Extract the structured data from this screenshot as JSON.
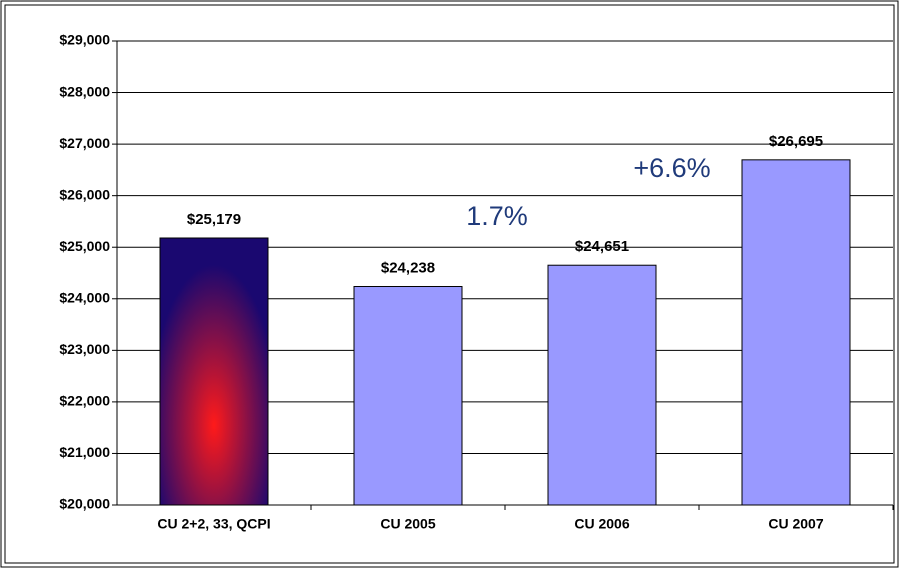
{
  "chart_data": {
    "type": "bar",
    "categories": [
      "CU 2+2, 33, QCPI",
      "CU 2005",
      "CU 2006",
      "CU 2007"
    ],
    "values": [
      25179,
      24238,
      24651,
      26695
    ],
    "value_labels": [
      "$25,179",
      "$24,238",
      "$24,651",
      "$26,695"
    ],
    "colors": [
      "#ff1a1a",
      "#9999ff",
      "#9999ff",
      "#9999ff"
    ],
    "ylim": [
      20000,
      29000
    ],
    "yticks": [
      {
        "value": 20000,
        "label": "$20,000"
      },
      {
        "value": 21000,
        "label": "$21,000"
      },
      {
        "value": 22000,
        "label": "$22,000"
      },
      {
        "value": 23000,
        "label": "$23,000"
      },
      {
        "value": 24000,
        "label": "$24,000"
      },
      {
        "value": 25000,
        "label": "$25,000"
      },
      {
        "value": 26000,
        "label": "$26,000"
      },
      {
        "value": 27000,
        "label": "$27,000"
      },
      {
        "value": 28000,
        "label": "$28,000"
      },
      {
        "value": 29000,
        "label": "$29,000"
      }
    ],
    "grid": true,
    "annotations": [
      "1.7%",
      "+6.6%"
    ]
  }
}
